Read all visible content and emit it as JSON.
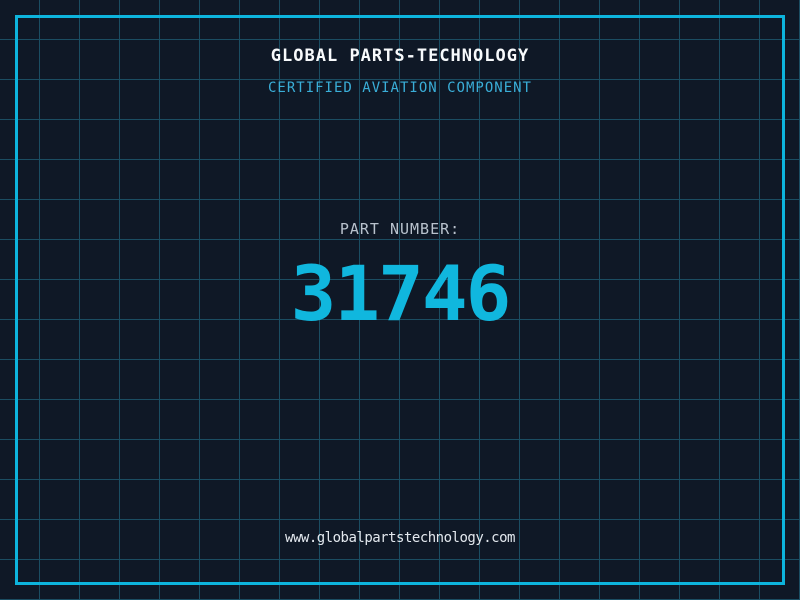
{
  "certificate": {
    "company_name": "GLOBAL PARTS-TECHNOLOGY",
    "subtitle": "CERTIFIED AVIATION COMPONENT",
    "part_number_label": "PART NUMBER:",
    "part_number_value": "31746",
    "website": "www.globalpartstechnology.com"
  },
  "colors": {
    "background": "#0f1826",
    "grid_line": "#1b4d62",
    "frame_accent": "#0db4dd",
    "subtitle_cyan": "#3aaed8",
    "part_number_cyan": "#10b7de",
    "label_gray": "#b9c2cd",
    "title_white": "#f8fafc",
    "url_white": "#e3e8ee"
  }
}
